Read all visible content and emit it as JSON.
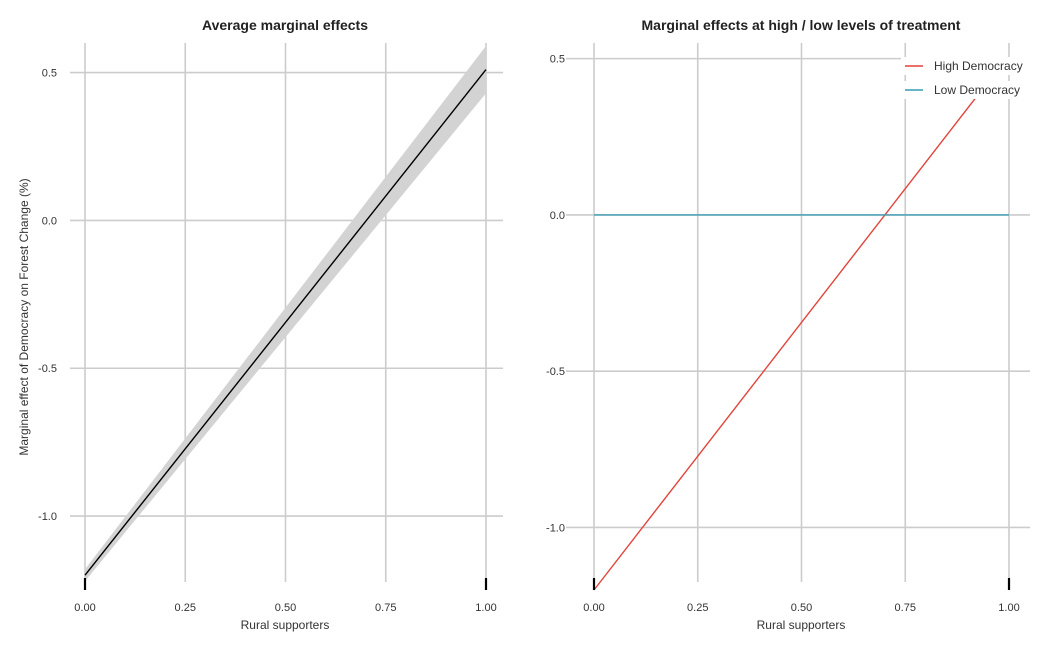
{
  "chart_data": [
    {
      "type": "line",
      "title": "Average marginal effects",
      "xlabel": "Rural supporters",
      "ylabel": "Marginal effect of Democracy on Forest Change (%)",
      "xlim": [
        0,
        1
      ],
      "ylim": [
        -1.25,
        0.6
      ],
      "x_ticks": [
        "0.00",
        "0.25",
        "0.50",
        "0.75",
        "1.00"
      ],
      "y_ticks": [
        "-1.0",
        "-0.5",
        "0.0",
        "0.5"
      ],
      "grid": true,
      "series": [
        {
          "x": [
            0.0,
            1.0
          ],
          "y": [
            -1.2,
            0.51
          ],
          "color": "#000000",
          "ci_lower": [
            -1.22,
            0.43
          ],
          "ci_upper": [
            -1.18,
            0.59
          ],
          "ci_color": "#d3d3d3"
        }
      ],
      "rug_x": [
        0.0,
        1.0
      ]
    },
    {
      "type": "line",
      "title": "Marginal effects at high / low levels of treatment",
      "xlabel": "Rural supporters",
      "ylabel": "",
      "xlim": [
        0,
        1
      ],
      "ylim": [
        -1.2,
        0.55
      ],
      "x_ticks": [
        "0.00",
        "0.25",
        "0.50",
        "0.75",
        "1.00"
      ],
      "y_ticks": [
        "-1.0",
        "-0.5",
        "0.0",
        "0.5"
      ],
      "grid": true,
      "legend_position": "top-right",
      "series": [
        {
          "name": "High Democracy",
          "x": [
            0.0,
            0.92
          ],
          "y": [
            -1.2,
            0.375
          ],
          "color": "#e0443a"
        },
        {
          "name": "Low Democracy",
          "x": [
            0.0,
            1.0
          ],
          "y": [
            0.0,
            0.0
          ],
          "color": "#3a9bb5"
        }
      ],
      "rug_x": [
        0.0,
        1.0
      ]
    }
  ]
}
